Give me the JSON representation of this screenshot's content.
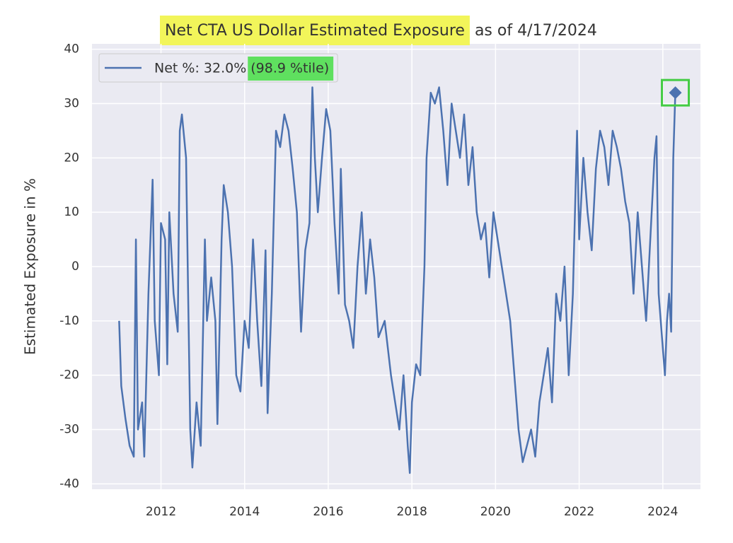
{
  "chart_data": {
    "type": "line",
    "title": "Net CTA US Dollar Estimated Exposure",
    "title_suffix": "as of 4/17/2024",
    "ylabel": "Estimated Exposure in %",
    "legend_note": "(98.9 %tile)",
    "title_highlight": "#f2f55a",
    "note_highlight": "#5fe05f",
    "last_box_color": "#44cc44",
    "xlim": [
      2010.35,
      2024.9
    ],
    "ylim": [
      -41,
      41
    ],
    "xticks": [
      2012,
      2014,
      2016,
      2018,
      2020,
      2022,
      2024
    ],
    "yticks": [
      -40,
      -30,
      -20,
      -10,
      0,
      10,
      20,
      30,
      40
    ],
    "grid": true,
    "legend": "upper left",
    "series": [
      {
        "name": "Net %:  32.0%",
        "color": "#4c72b0",
        "x": [
          2011.0,
          2011.05,
          2011.15,
          2011.25,
          2011.35,
          2011.4,
          2011.45,
          2011.55,
          2011.6,
          2011.7,
          2011.8,
          2011.85,
          2011.95,
          2012.0,
          2012.1,
          2012.15,
          2012.2,
          2012.3,
          2012.4,
          2012.45,
          2012.5,
          2012.6,
          2012.65,
          2012.7,
          2012.75,
          2012.85,
          2012.95,
          2013.05,
          2013.1,
          2013.2,
          2013.3,
          2013.35,
          2013.45,
          2013.5,
          2013.6,
          2013.7,
          2013.8,
          2013.9,
          2014.0,
          2014.1,
          2014.2,
          2014.3,
          2014.4,
          2014.5,
          2014.55,
          2014.65,
          2014.75,
          2014.85,
          2014.95,
          2015.05,
          2015.15,
          2015.25,
          2015.35,
          2015.45,
          2015.55,
          2015.62,
          2015.68,
          2015.75,
          2015.85,
          2015.95,
          2016.05,
          2016.15,
          2016.25,
          2016.3,
          2016.4,
          2016.5,
          2016.6,
          2016.7,
          2016.8,
          2016.9,
          2017.0,
          2017.1,
          2017.2,
          2017.35,
          2017.5,
          2017.6,
          2017.7,
          2017.8,
          2017.9,
          2017.95,
          2018.0,
          2018.1,
          2018.2,
          2018.3,
          2018.35,
          2018.45,
          2018.55,
          2018.65,
          2018.75,
          2018.85,
          2018.95,
          2019.05,
          2019.15,
          2019.25,
          2019.35,
          2019.45,
          2019.55,
          2019.65,
          2019.75,
          2019.85,
          2019.95,
          2020.05,
          2020.15,
          2020.25,
          2020.35,
          2020.45,
          2020.55,
          2020.65,
          2020.75,
          2020.85,
          2020.95,
          2021.05,
          2021.15,
          2021.25,
          2021.35,
          2021.45,
          2021.55,
          2021.65,
          2021.75,
          2021.85,
          2021.95,
          2022.0,
          2022.1,
          2022.2,
          2022.3,
          2022.4,
          2022.5,
          2022.6,
          2022.7,
          2022.8,
          2022.9,
          2023.0,
          2023.1,
          2023.2,
          2023.3,
          2023.4,
          2023.5,
          2023.6,
          2023.7,
          2023.8,
          2023.85,
          2023.9,
          2024.0,
          2024.05,
          2024.1,
          2024.15,
          2024.2,
          2024.25,
          2024.3
        ],
        "values": [
          -10,
          -22,
          -28,
          -33,
          -35,
          5,
          -30,
          -25,
          -35,
          -5,
          16,
          -10,
          -20,
          8,
          5,
          -18,
          10,
          -5,
          -12,
          25,
          28,
          20,
          -5,
          -30,
          -37,
          -25,
          -33,
          5,
          -10,
          -2,
          -10,
          -29,
          5,
          15,
          10,
          0,
          -20,
          -23,
          -10,
          -15,
          5,
          -10,
          -22,
          3,
          -27,
          -5,
          25,
          22,
          28,
          25,
          18,
          10,
          -12,
          3,
          8,
          33,
          20,
          10,
          20,
          29,
          25,
          8,
          -5,
          18,
          -7,
          -10,
          -15,
          0,
          10,
          -5,
          5,
          -2,
          -13,
          -10,
          -20,
          -25,
          -30,
          -20,
          -33,
          -38,
          -25,
          -18,
          -20,
          0,
          20,
          32,
          30,
          33,
          25,
          15,
          30,
          25,
          20,
          28,
          15,
          22,
          10,
          5,
          8,
          -2,
          10,
          5,
          0,
          -5,
          -10,
          -20,
          -30,
          -36,
          -33,
          -30,
          -35,
          -25,
          -20,
          -15,
          -25,
          -5,
          -10,
          0,
          -20,
          -5,
          25,
          5,
          20,
          10,
          3,
          18,
          25,
          22,
          15,
          25,
          22,
          18,
          12,
          8,
          -5,
          10,
          0,
          -10,
          5,
          20,
          24,
          -5,
          -15,
          -20,
          -10,
          -5,
          -12,
          20,
          32
        ]
      }
    ]
  }
}
